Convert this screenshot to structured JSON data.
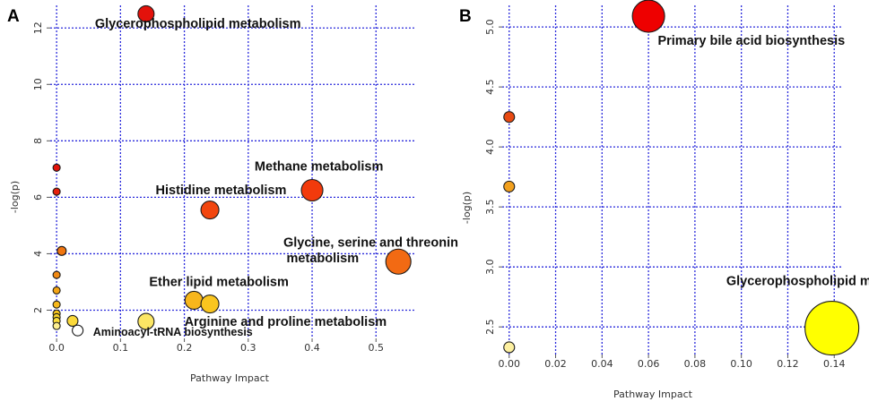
{
  "chart_data": [
    {
      "panel_label": "A",
      "type": "scatter",
      "xlabel": "Pathway Impact",
      "ylabel": "-log(p)",
      "xlim": [
        -0.01,
        0.56
      ],
      "ylim": [
        1.0,
        12.8
      ],
      "xticks": [
        0.0,
        0.1,
        0.2,
        0.3,
        0.4,
        0.5
      ],
      "xtick_labels": [
        "0.0",
        "0.1",
        "0.2",
        "0.3",
        "0.4",
        "0.5"
      ],
      "yticks": [
        2,
        4,
        6,
        8,
        10,
        12
      ],
      "ytick_labels": [
        "2",
        "4",
        "6",
        "8",
        "10",
        "12"
      ],
      "grid": true,
      "points": [
        {
          "x": 0.14,
          "y": 12.5,
          "r": 9,
          "color": "#e3120b"
        },
        {
          "x": 0.4,
          "y": 6.25,
          "r": 12,
          "color": "#f23a0c"
        },
        {
          "x": 0.24,
          "y": 5.55,
          "r": 10,
          "color": "#f2460f"
        },
        {
          "x": 0.535,
          "y": 3.72,
          "r": 14,
          "color": "#f26a13"
        },
        {
          "x": 0.215,
          "y": 2.35,
          "r": 10,
          "color": "#f7b61c"
        },
        {
          "x": 0.24,
          "y": 2.22,
          "r": 10,
          "color": "#f9c51f"
        },
        {
          "x": 0.14,
          "y": 1.6,
          "r": 9,
          "color": "#fbe664"
        },
        {
          "x": 0.025,
          "y": 1.62,
          "r": 6,
          "color": "#fbd93a"
        },
        {
          "x": 0.033,
          "y": 1.28,
          "r": 6,
          "color": "#ffffff"
        },
        {
          "x": 0.0,
          "y": 7.05,
          "r": 4,
          "color": "#e3120b"
        },
        {
          "x": 0.0,
          "y": 6.2,
          "r": 4,
          "color": "#e61e0c"
        },
        {
          "x": 0.008,
          "y": 4.1,
          "r": 5,
          "color": "#f07510"
        },
        {
          "x": 0.0,
          "y": 3.25,
          "r": 4,
          "color": "#f28a14"
        },
        {
          "x": 0.0,
          "y": 2.7,
          "r": 4,
          "color": "#f5a516"
        },
        {
          "x": 0.0,
          "y": 2.2,
          "r": 4,
          "color": "#f7b81a"
        },
        {
          "x": 0.0,
          "y": 1.88,
          "r": 4,
          "color": "#f9c41f"
        },
        {
          "x": 0.0,
          "y": 1.75,
          "r": 4,
          "color": "#fad22b"
        },
        {
          "x": 0.0,
          "y": 1.62,
          "r": 4,
          "color": "#fbdd3c"
        },
        {
          "x": 0.0,
          "y": 1.44,
          "r": 4,
          "color": "#fdef90"
        }
      ],
      "annotations": [
        {
          "text": "Glycerophospholipid metabolism",
          "x": 0.06,
          "y": 12.0
        },
        {
          "text": "Methane metabolism",
          "x": 0.31,
          "y": 6.95
        },
        {
          "text": "Histidine metabolism",
          "x": 0.155,
          "y": 6.1
        },
        {
          "text": "Glycine, serine and threonin",
          "x": 0.355,
          "y": 4.25
        },
        {
          "text": "metabolism",
          "x": 0.36,
          "y": 3.7
        },
        {
          "text": "Ether lipid metabolism",
          "x": 0.145,
          "y": 2.85
        },
        {
          "text": "Arginine and proline metabolism",
          "x": 0.2,
          "y": 1.45
        },
        {
          "text": "Aminoacyl-tRNA biosynthesis",
          "x": 0.057,
          "y": 1.1,
          "small": true
        }
      ]
    },
    {
      "panel_label": "B",
      "type": "scatter",
      "xlabel": "Pathway Impact",
      "ylabel": "-log(p)",
      "xlim": [
        -0.003,
        0.143
      ],
      "ylim": [
        2.27,
        5.18
      ],
      "xticks": [
        0.0,
        0.02,
        0.04,
        0.06,
        0.08,
        0.1,
        0.12,
        0.14
      ],
      "xtick_labels": [
        "0.00",
        "0.02",
        "0.04",
        "0.06",
        "0.08",
        "0.10",
        "0.12",
        "0.14"
      ],
      "yticks": [
        2.5,
        3.0,
        3.5,
        4.0,
        4.5,
        5.0
      ],
      "ytick_labels": [
        "2.5",
        "3.0",
        "3.5",
        "4.0",
        "4.5",
        "5.0"
      ],
      "grid": true,
      "points": [
        {
          "x": 0.06,
          "y": 5.09,
          "r": 18,
          "color": "#ee0000"
        },
        {
          "x": 0.0,
          "y": 4.25,
          "r": 6,
          "color": "#e84a12"
        },
        {
          "x": 0.0,
          "y": 3.67,
          "r": 6,
          "color": "#f2a01d"
        },
        {
          "x": 0.139,
          "y": 2.49,
          "r": 30,
          "color": "#ffff00"
        },
        {
          "x": 0.0,
          "y": 2.33,
          "r": 6,
          "color": "#fdf0a0"
        }
      ],
      "annotations": [
        {
          "text": "Primary bile acid biosynthesis",
          "x": 0.064,
          "y": 4.85
        },
        {
          "text": "Glycerophospholipid metabolism",
          "x": 0.0935,
          "y": 2.85
        }
      ]
    }
  ]
}
